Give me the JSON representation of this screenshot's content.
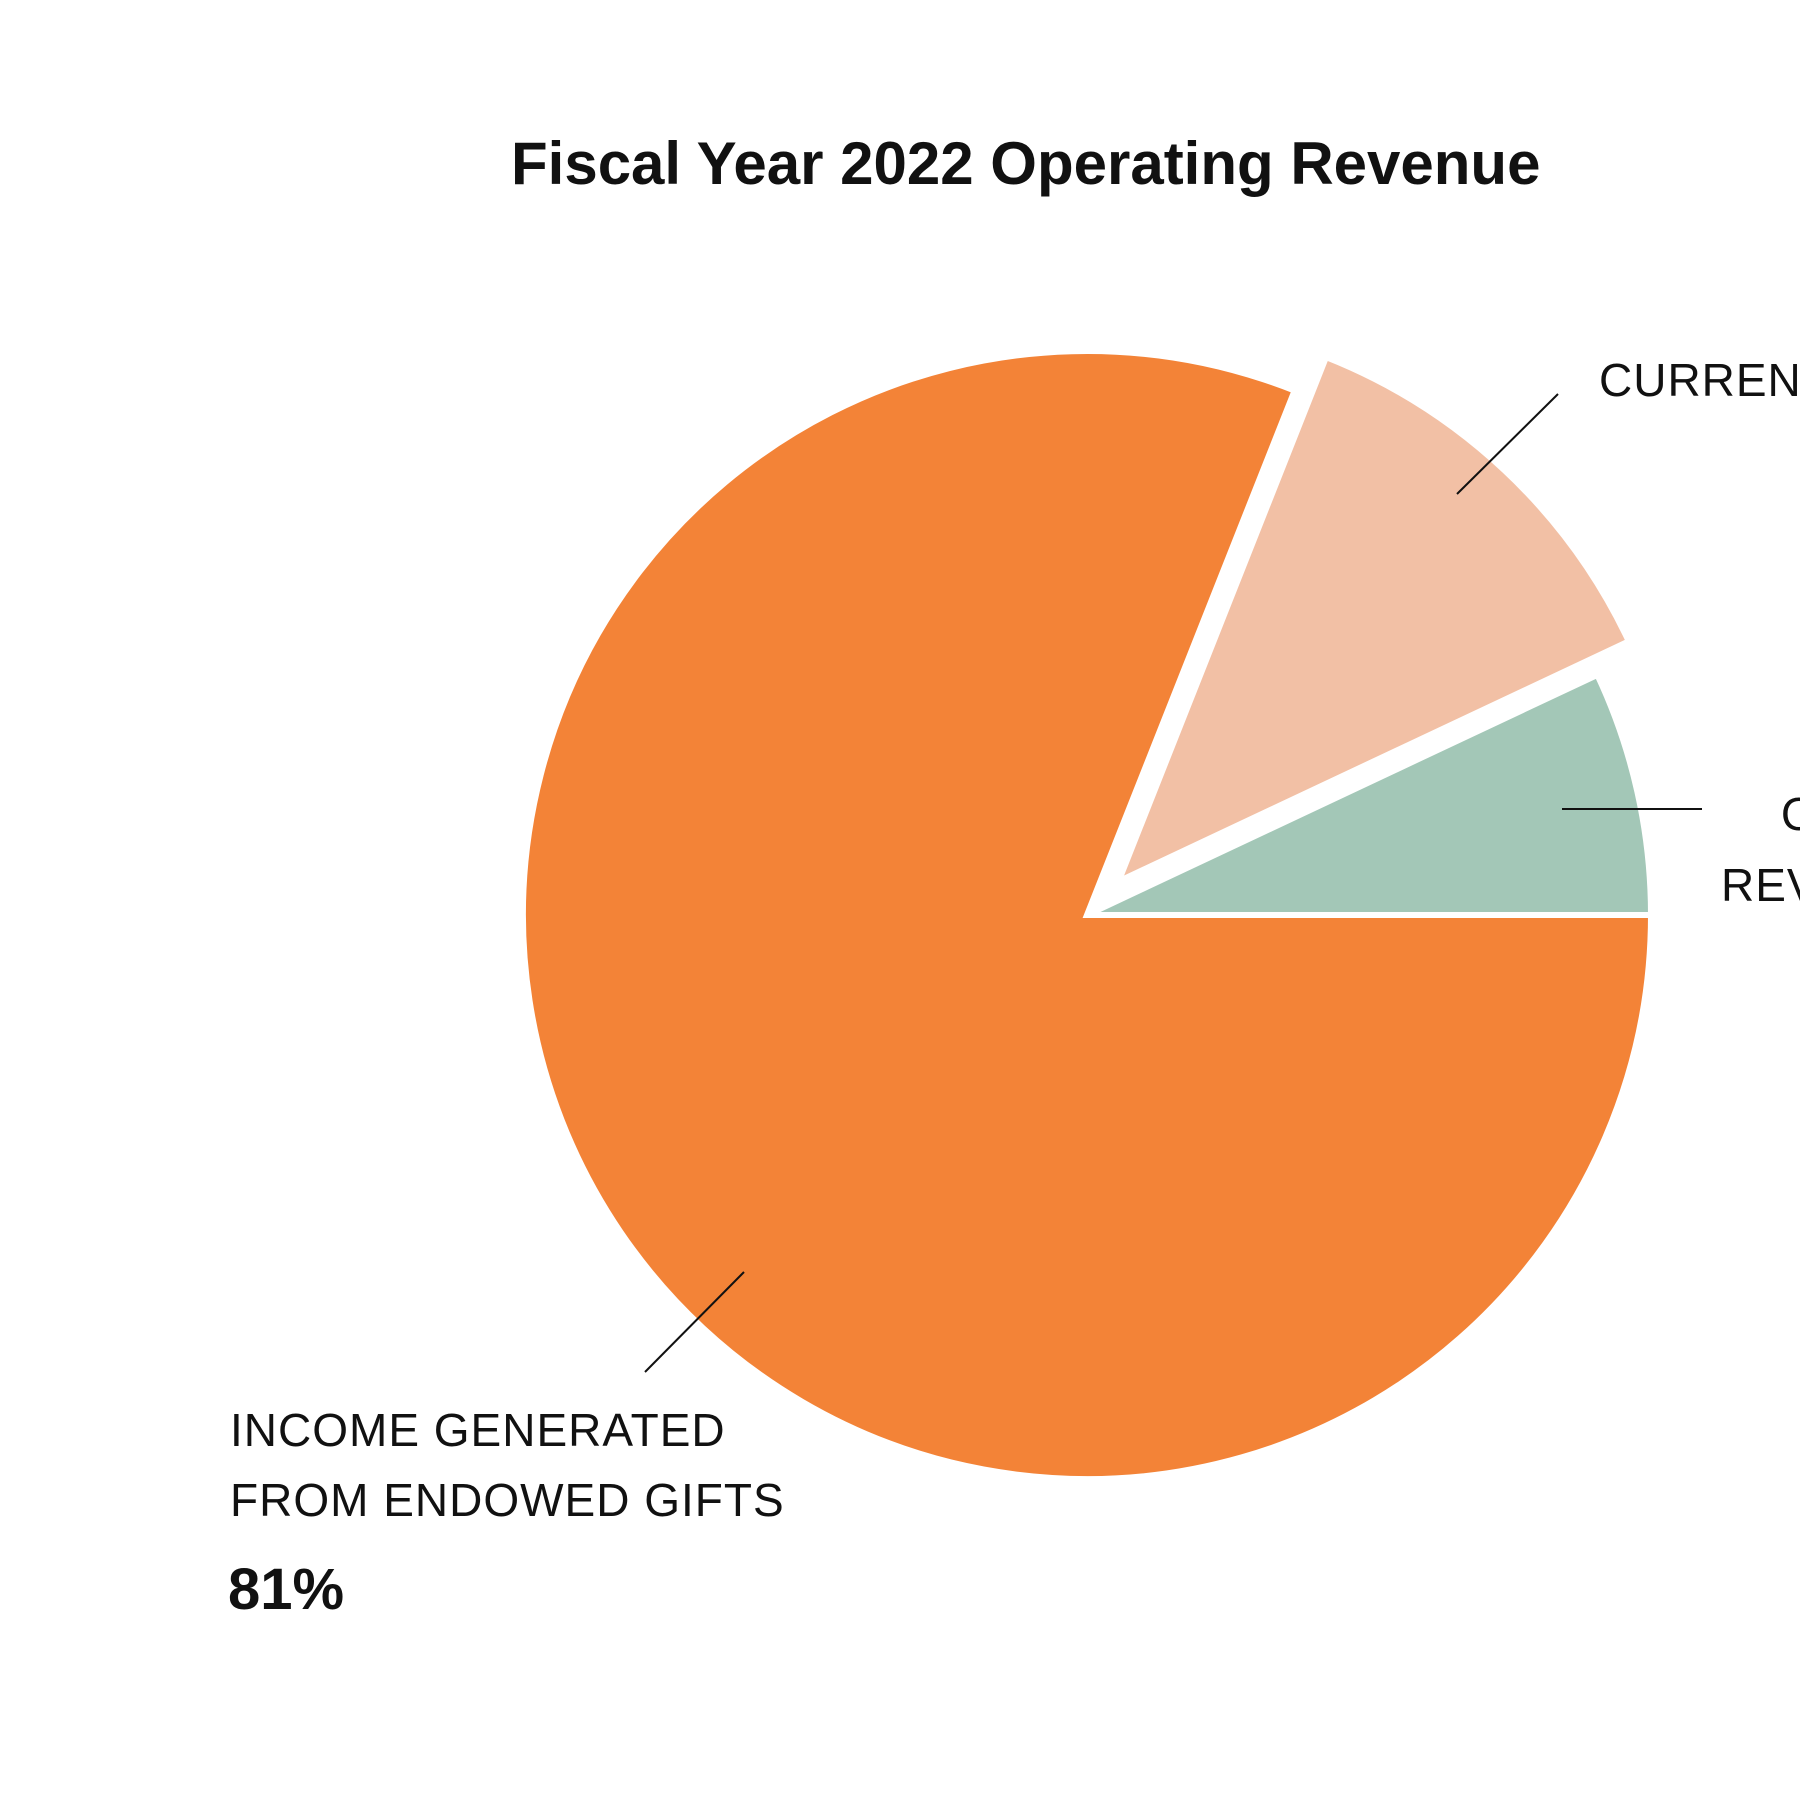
{
  "chart_data": {
    "type": "pie",
    "title": "Fiscal Year 2022 Operating Revenue",
    "slices": [
      {
        "label_lines": [
          "INCOME GENERATED",
          "FROM ENDOWED GIFTS"
        ],
        "value_label": "81%",
        "value": 81,
        "color": "#F38337",
        "exploded": false
      },
      {
        "label_lines": [
          "CURREN"
        ],
        "value": 12,
        "color": "#F2C0A5",
        "exploded": true
      },
      {
        "label_lines": [
          "O",
          "REV"
        ],
        "value": 7,
        "color": "#A3C7B7",
        "exploded": false
      }
    ],
    "start_angle_deg": 0,
    "direction": "counterclockwise",
    "legend": "none"
  }
}
